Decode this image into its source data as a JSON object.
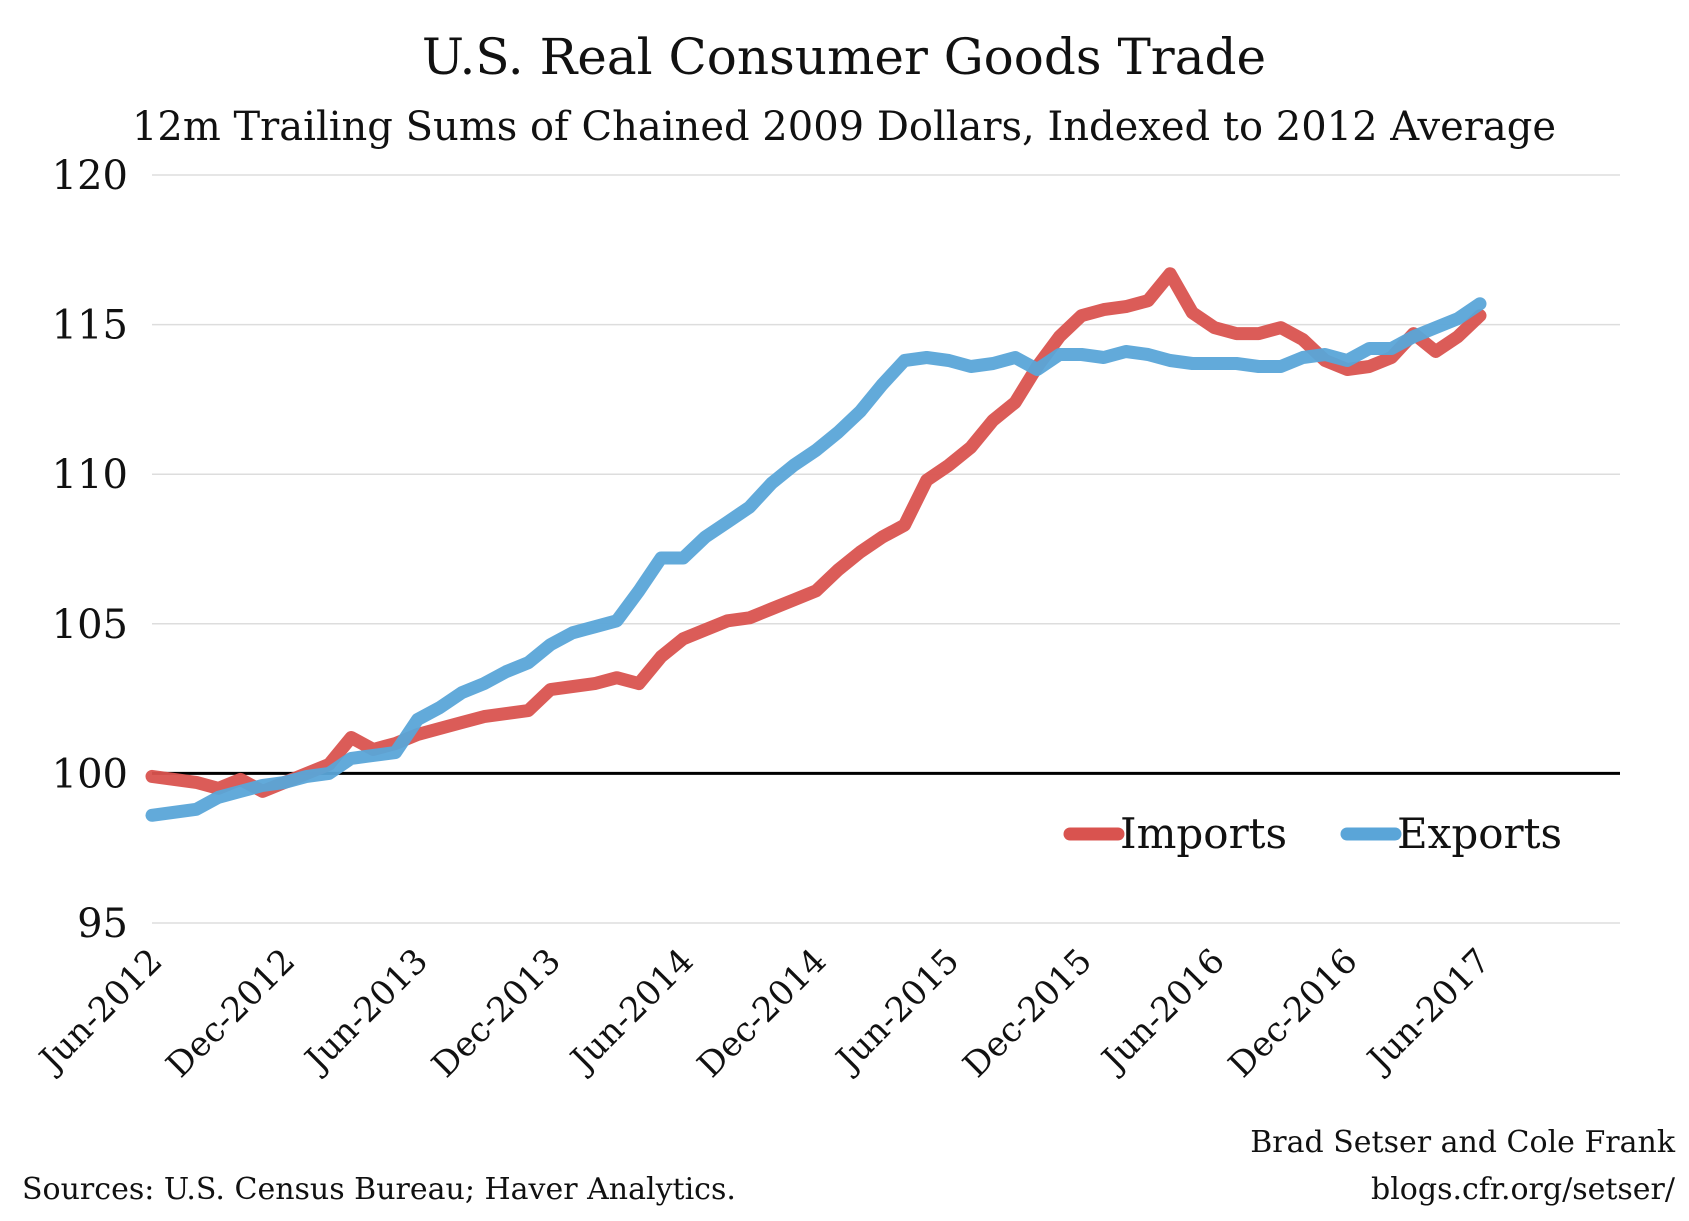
{
  "chart_data": {
    "type": "line",
    "title": "U.S. Real Consumer Goods Trade",
    "subtitle": "12m Trailing Sums of Chained 2009 Dollars, Indexed to 2012 Average",
    "ylim": [
      95,
      120
    ],
    "yticks": [
      "95",
      "100",
      "105",
      "110",
      "115",
      "120"
    ],
    "xticks": [
      "Jun-2012",
      "Dec-2012",
      "Jun-2013",
      "Dec-2013",
      "Jun-2014",
      "Dec-2014",
      "Jun-2015",
      "Dec-2015",
      "Jun-2016",
      "Dec-2016",
      "Jun-2017"
    ],
    "x_start": "Jun-2012",
    "x_end": "Apr-2017",
    "reference_line": 100,
    "grid": true,
    "legend_position": "bottom-right",
    "series": [
      {
        "name": "Imports",
        "color": "#d9534f",
        "values": [
          99.9,
          99.8,
          99.7,
          99.5,
          99.8,
          99.4,
          99.7,
          100.0,
          100.3,
          101.2,
          100.8,
          101.0,
          101.3,
          101.5,
          101.7,
          101.9,
          102.0,
          102.1,
          102.8,
          102.9,
          103.0,
          103.2,
          103.0,
          103.9,
          104.5,
          104.8,
          105.1,
          105.2,
          105.5,
          105.8,
          106.1,
          106.8,
          107.4,
          107.9,
          108.3,
          109.8,
          110.3,
          110.9,
          111.8,
          112.4,
          113.6,
          114.6,
          115.3,
          115.5,
          115.6,
          115.8,
          116.7,
          115.4,
          114.9,
          114.7,
          114.7,
          114.9,
          114.5,
          113.8,
          113.5,
          113.6,
          113.9,
          114.7,
          114.1,
          114.6,
          115.3
        ]
      },
      {
        "name": "Exports",
        "color": "#5aa5d8",
        "values": [
          98.6,
          98.7,
          98.8,
          99.2,
          99.4,
          99.6,
          99.7,
          99.9,
          100.0,
          100.5,
          100.6,
          100.7,
          101.8,
          102.2,
          102.7,
          103.0,
          103.4,
          103.7,
          104.3,
          104.7,
          104.9,
          105.1,
          106.1,
          107.2,
          107.2,
          107.9,
          108.4,
          108.9,
          109.7,
          110.3,
          110.8,
          111.4,
          112.1,
          113.0,
          113.8,
          113.9,
          113.8,
          113.6,
          113.7,
          113.9,
          113.5,
          114.0,
          114.0,
          113.9,
          114.1,
          114.0,
          113.8,
          113.7,
          113.7,
          113.7,
          113.6,
          113.6,
          113.9,
          114.0,
          113.8,
          114.2,
          114.2,
          114.6,
          114.9,
          115.2,
          115.7
        ]
      }
    ]
  },
  "credit": {
    "authors": "Brad Setser and Cole Frank",
    "url": "blogs.cfr.org/setser/"
  },
  "sources": "Sources: U.S. Census Bureau; Haver Analytics."
}
